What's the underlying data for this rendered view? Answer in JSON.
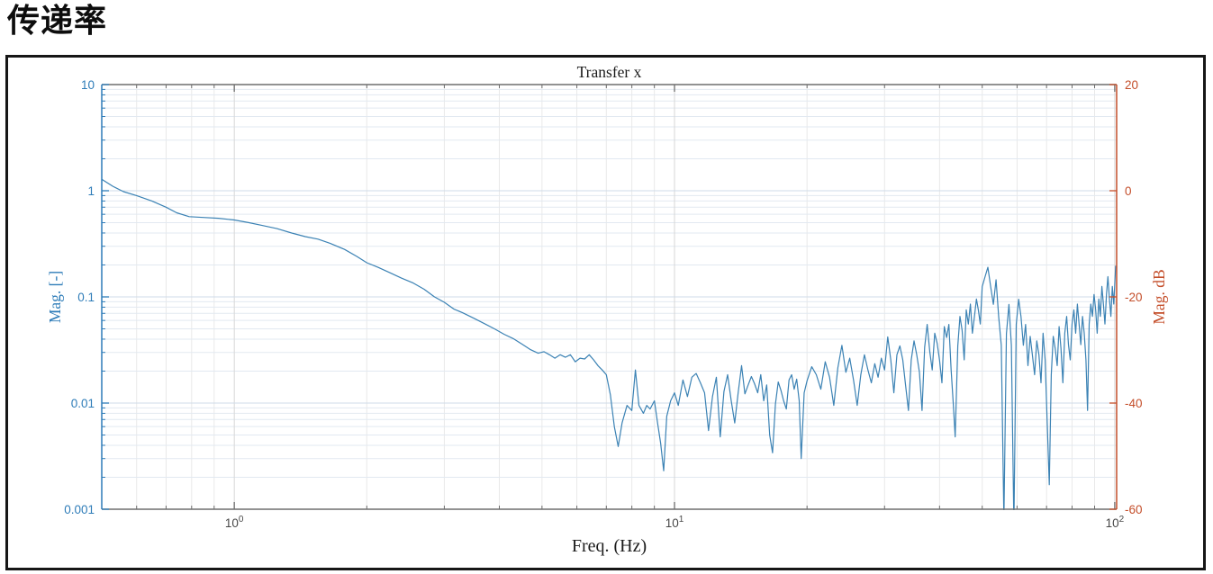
{
  "page": {
    "heading": "传递率"
  },
  "chart_data": {
    "type": "line",
    "title": "Transfer x",
    "xlabel": "Freq. (Hz)",
    "ylabel_left": "Mag. [-]",
    "ylabel_right": "Mag. dB",
    "x_scale": "log",
    "y_scale_left": "log",
    "y_scale_right": "linear-dB",
    "xlim": [
      0.5,
      101
    ],
    "ylim_left": [
      0.001,
      10
    ],
    "ylim_right": [
      -60,
      20
    ],
    "grid": "major+minor",
    "legend": "none",
    "x_ticks": [
      {
        "v": 1,
        "mant": "10",
        "exp": "0"
      },
      {
        "v": 10,
        "mant": "10",
        "exp": "1"
      },
      {
        "v": 100,
        "mant": "10",
        "exp": "2"
      }
    ],
    "y_ticks_left": [
      {
        "v": 10,
        "label": "10"
      },
      {
        "v": 1,
        "label": "1"
      },
      {
        "v": 0.1,
        "label": "0.1"
      },
      {
        "v": 0.01,
        "label": "0.01"
      },
      {
        "v": 0.001,
        "label": "0.001"
      }
    ],
    "y_ticks_right": [
      {
        "v": 20,
        "label": "20"
      },
      {
        "v": 0,
        "label": "0"
      },
      {
        "v": -20,
        "label": "-20"
      },
      {
        "v": -40,
        "label": "-40"
      },
      {
        "v": -60,
        "label": "-60"
      }
    ],
    "colors": {
      "line": "#3b82b4",
      "left_axis": "#2e7cb8",
      "right_axis": "#c44e2a",
      "x_axis": "#6e6e6e",
      "x_text": "#474747",
      "title_text": "#1b1b1b",
      "grid_h_minor": "#e2e9f1",
      "grid_h_major": "#cfdbe8",
      "grid_v_minor": "#e9e9e9",
      "grid_v_major": "#d7d7d7"
    },
    "series": [
      {
        "name": "Transfer x",
        "points": [
          [
            0.5,
            1.28
          ],
          [
            0.53,
            1.1
          ],
          [
            0.56,
            0.98
          ],
          [
            0.6,
            0.9
          ],
          [
            0.65,
            0.8
          ],
          [
            0.7,
            0.7
          ],
          [
            0.74,
            0.62
          ],
          [
            0.79,
            0.57
          ],
          [
            0.85,
            0.56
          ],
          [
            0.92,
            0.55
          ],
          [
            1.0,
            0.53
          ],
          [
            1.08,
            0.5
          ],
          [
            1.16,
            0.47
          ],
          [
            1.25,
            0.44
          ],
          [
            1.35,
            0.4
          ],
          [
            1.45,
            0.37
          ],
          [
            1.55,
            0.35
          ],
          [
            1.65,
            0.32
          ],
          [
            1.78,
            0.28
          ],
          [
            1.9,
            0.24
          ],
          [
            2.0,
            0.21
          ],
          [
            2.12,
            0.19
          ],
          [
            2.25,
            0.17
          ],
          [
            2.4,
            0.15
          ],
          [
            2.55,
            0.135
          ],
          [
            2.7,
            0.118
          ],
          [
            2.85,
            0.1
          ],
          [
            3.0,
            0.089
          ],
          [
            3.15,
            0.077
          ],
          [
            3.3,
            0.071
          ],
          [
            3.5,
            0.063
          ],
          [
            3.7,
            0.056
          ],
          [
            3.9,
            0.05
          ],
          [
            4.1,
            0.0445
          ],
          [
            4.3,
            0.0405
          ],
          [
            4.5,
            0.036
          ],
          [
            4.7,
            0.032
          ],
          [
            4.9,
            0.0295
          ],
          [
            5.05,
            0.0305
          ],
          [
            5.2,
            0.0285
          ],
          [
            5.35,
            0.0265
          ],
          [
            5.5,
            0.0285
          ],
          [
            5.65,
            0.027
          ],
          [
            5.8,
            0.0285
          ],
          [
            5.95,
            0.0245
          ],
          [
            6.1,
            0.0265
          ],
          [
            6.25,
            0.026
          ],
          [
            6.4,
            0.0285
          ],
          [
            6.55,
            0.0255
          ],
          [
            6.7,
            0.0225
          ],
          [
            6.85,
            0.0205
          ],
          [
            7.0,
            0.0185
          ],
          [
            7.15,
            0.012
          ],
          [
            7.3,
            0.006
          ],
          [
            7.45,
            0.0039
          ],
          [
            7.6,
            0.0065
          ],
          [
            7.8,
            0.0095
          ],
          [
            8.0,
            0.0085
          ],
          [
            8.15,
            0.0205
          ],
          [
            8.3,
            0.0095
          ],
          [
            8.5,
            0.008
          ],
          [
            8.65,
            0.0095
          ],
          [
            8.8,
            0.0088
          ],
          [
            9.0,
            0.0105
          ],
          [
            9.15,
            0.0065
          ],
          [
            9.3,
            0.0042
          ],
          [
            9.45,
            0.0023
          ],
          [
            9.6,
            0.0075
          ],
          [
            9.8,
            0.0105
          ],
          [
            10.0,
            0.0125
          ],
          [
            10.2,
            0.0095
          ],
          [
            10.45,
            0.0165
          ],
          [
            10.7,
            0.0115
          ],
          [
            10.95,
            0.0175
          ],
          [
            11.2,
            0.019
          ],
          [
            11.45,
            0.0155
          ],
          [
            11.7,
            0.0125
          ],
          [
            11.95,
            0.0055
          ],
          [
            12.2,
            0.0115
          ],
          [
            12.45,
            0.0175
          ],
          [
            12.7,
            0.0048
          ],
          [
            12.95,
            0.0128
          ],
          [
            13.2,
            0.0185
          ],
          [
            13.45,
            0.0105
          ],
          [
            13.7,
            0.0065
          ],
          [
            13.95,
            0.0125
          ],
          [
            14.2,
            0.0225
          ],
          [
            14.45,
            0.0122
          ],
          [
            14.7,
            0.0148
          ],
          [
            14.95,
            0.0178
          ],
          [
            15.2,
            0.0152
          ],
          [
            15.45,
            0.0125
          ],
          [
            15.7,
            0.0185
          ],
          [
            15.95,
            0.0105
          ],
          [
            16.2,
            0.0148
          ],
          [
            16.45,
            0.005
          ],
          [
            16.7,
            0.0034
          ],
          [
            16.95,
            0.0098
          ],
          [
            17.2,
            0.0158
          ],
          [
            17.45,
            0.0132
          ],
          [
            17.7,
            0.0105
          ],
          [
            17.95,
            0.0088
          ],
          [
            18.2,
            0.0165
          ],
          [
            18.45,
            0.0185
          ],
          [
            18.7,
            0.0135
          ],
          [
            18.95,
            0.0168
          ],
          [
            19.2,
            0.0105
          ],
          [
            19.4,
            0.003
          ],
          [
            19.7,
            0.0125
          ],
          [
            20.0,
            0.0162
          ],
          [
            20.5,
            0.022
          ],
          [
            21,
            0.0185
          ],
          [
            21.5,
            0.0135
          ],
          [
            22,
            0.0245
          ],
          [
            22.5,
            0.0175
          ],
          [
            23,
            0.0095
          ],
          [
            23.5,
            0.0215
          ],
          [
            24,
            0.035
          ],
          [
            24.5,
            0.0195
          ],
          [
            25,
            0.0265
          ],
          [
            25.5,
            0.0165
          ],
          [
            26,
            0.0095
          ],
          [
            26.5,
            0.0185
          ],
          [
            27,
            0.0285
          ],
          [
            27.5,
            0.0205
          ],
          [
            28,
            0.0155
          ],
          [
            28.5,
            0.0235
          ],
          [
            29,
            0.0175
          ],
          [
            29.5,
            0.0265
          ],
          [
            30,
            0.0205
          ],
          [
            30.5,
            0.042
          ],
          [
            31,
            0.0255
          ],
          [
            31.5,
            0.0125
          ],
          [
            32,
            0.0285
          ],
          [
            32.5,
            0.0345
          ],
          [
            33,
            0.0255
          ],
          [
            33.5,
            0.0145
          ],
          [
            34,
            0.0085
          ],
          [
            34.5,
            0.0255
          ],
          [
            35,
            0.0385
          ],
          [
            35.5,
            0.0285
          ],
          [
            36,
            0.0195
          ],
          [
            36.5,
            0.0085
          ],
          [
            37,
            0.0335
          ],
          [
            37.5,
            0.055
          ],
          [
            38,
            0.0305
          ],
          [
            38.5,
            0.0205
          ],
          [
            39,
            0.0455
          ],
          [
            39.5,
            0.0365
          ],
          [
            40,
            0.0255
          ],
          [
            40.5,
            0.0155
          ],
          [
            41,
            0.0525
          ],
          [
            41.5,
            0.0415
          ],
          [
            42,
            0.055
          ],
          [
            42.5,
            0.0205
          ],
          [
            43,
            0.0095
          ],
          [
            43.4,
            0.0048
          ],
          [
            44,
            0.0345
          ],
          [
            44.5,
            0.0655
          ],
          [
            45,
            0.0485
          ],
          [
            45.5,
            0.0255
          ],
          [
            46,
            0.0755
          ],
          [
            46.5,
            0.0555
          ],
          [
            47,
            0.0855
          ],
          [
            47.5,
            0.0455
          ],
          [
            48,
            0.0655
          ],
          [
            48.5,
            0.0955
          ],
          [
            49,
            0.0755
          ],
          [
            49.5,
            0.0555
          ],
          [
            50,
            0.125
          ],
          [
            50.75,
            0.155
          ],
          [
            51.5,
            0.19
          ],
          [
            52.25,
            0.125
          ],
          [
            53,
            0.085
          ],
          [
            53.75,
            0.145
          ],
          [
            54.5,
            0.065
          ],
          [
            55.25,
            0.035
          ],
          [
            56,
            0.0008
          ],
          [
            56.75,
            0.045
          ],
          [
            57.5,
            0.085
          ],
          [
            58.25,
            0.035
          ],
          [
            59,
            0.0007
          ],
          [
            59.75,
            0.055
          ],
          [
            60.5,
            0.095
          ],
          [
            61.25,
            0.065
          ],
          [
            62,
            0.035
          ],
          [
            62.75,
            0.055
          ],
          [
            63.5,
            0.0225
          ],
          [
            64.25,
            0.0425
          ],
          [
            65,
            0.0285
          ],
          [
            65.75,
            0.0185
          ],
          [
            66.5,
            0.0385
          ],
          [
            67.25,
            0.0285
          ],
          [
            68,
            0.0155
          ],
          [
            68.75,
            0.0455
          ],
          [
            69.5,
            0.0255
          ],
          [
            70.25,
            0.0065
          ],
          [
            71,
            0.0017
          ],
          [
            71.75,
            0.0185
          ],
          [
            72.5,
            0.0425
          ],
          [
            73.25,
            0.0325
          ],
          [
            74,
            0.0225
          ],
          [
            74.75,
            0.0525
          ],
          [
            75.5,
            0.0325
          ],
          [
            76.25,
            0.0155
          ],
          [
            77,
            0.0455
          ],
          [
            77.75,
            0.0655
          ],
          [
            78.5,
            0.0355
          ],
          [
            79.25,
            0.0255
          ],
          [
            80,
            0.0555
          ],
          [
            80.75,
            0.0755
          ],
          [
            81.5,
            0.0455
          ],
          [
            82.25,
            0.0855
          ],
          [
            83,
            0.0555
          ],
          [
            83.75,
            0.0355
          ],
          [
            84.5,
            0.0655
          ],
          [
            85.25,
            0.0455
          ],
          [
            86,
            0.0255
          ],
          [
            86.75,
            0.0085
          ],
          [
            87.5,
            0.0555
          ],
          [
            88.25,
            0.0855
          ],
          [
            89,
            0.0655
          ],
          [
            89.75,
            0.1055
          ],
          [
            90.5,
            0.0755
          ],
          [
            91.25,
            0.0455
          ],
          [
            92,
            0.0955
          ],
          [
            92.75,
            0.0655
          ],
          [
            93.5,
            0.1255
          ],
          [
            94.25,
            0.0855
          ],
          [
            95,
            0.0555
          ],
          [
            95.75,
            0.1055
          ],
          [
            96.5,
            0.155
          ],
          [
            97.25,
            0.0955
          ],
          [
            98,
            0.0655
          ],
          [
            98.75,
            0.1255
          ],
          [
            99.5,
            0.0855
          ],
          [
            100.5,
            0.195
          ]
        ]
      }
    ]
  }
}
